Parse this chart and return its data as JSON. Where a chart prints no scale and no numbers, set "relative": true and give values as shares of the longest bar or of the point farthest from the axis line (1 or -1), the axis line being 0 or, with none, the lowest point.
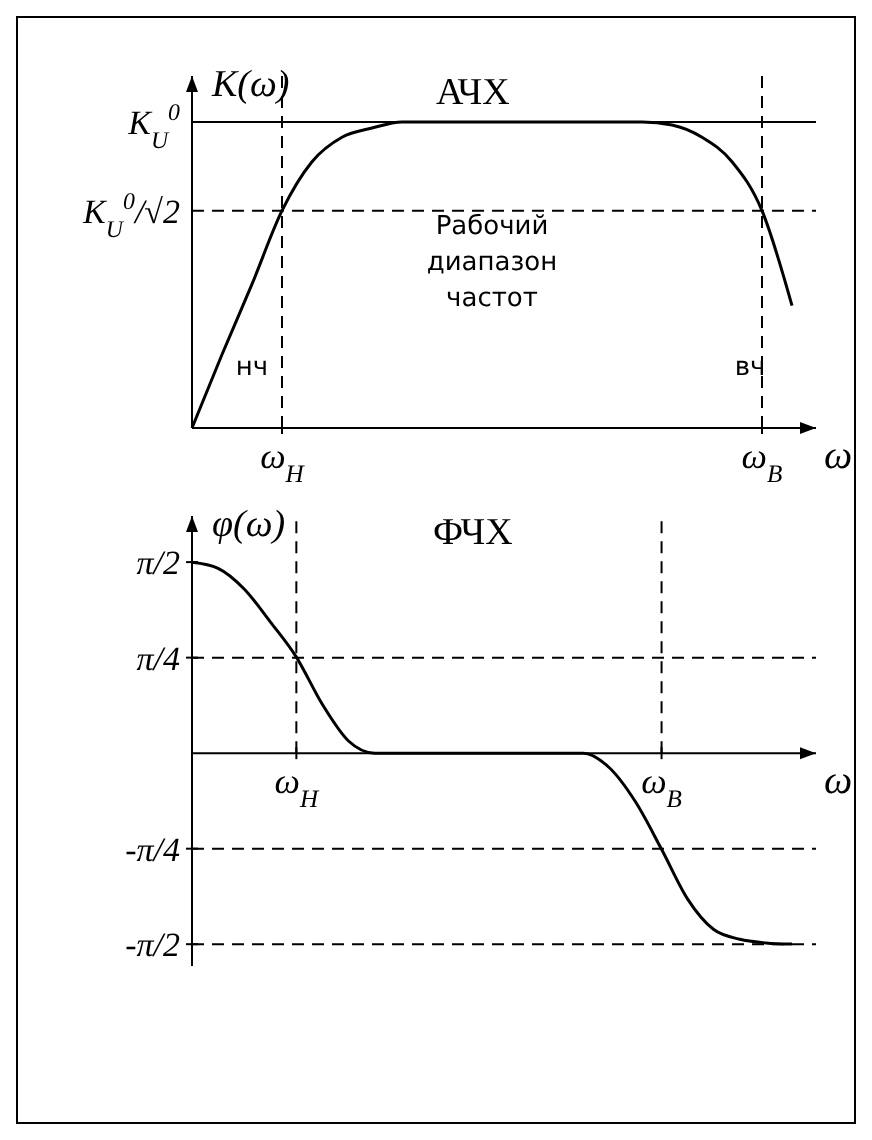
{
  "chart_data": [
    {
      "type": "line",
      "title": "АЧХ",
      "xlabel": "ω",
      "ylabel": "K(ω)",
      "relative": true,
      "categories": [
        null,
        null,
        null,
        "ω$_{H}$",
        null,
        null,
        null,
        null,
        null,
        null,
        null,
        null,
        null,
        null,
        null,
        null,
        null,
        null,
        null,
        "ω$_{B}$",
        null
      ],
      "series": [
        {
          "color": "#000000",
          "values": [
            0,
            0.24,
            0.47,
            0.71,
            0.87,
            0.95,
            0.98,
            1,
            1,
            1,
            1,
            1,
            1,
            1,
            1,
            1,
            0.99,
            0.95,
            0.87,
            0.71,
            0.4
          ]
        }
      ],
      "ref_lines": [
        {
          "axis": "y",
          "value": 1,
          "label": "K$_{U}$$^{0}$",
          "line_style": "solid"
        },
        {
          "axis": "y",
          "value": 0.71,
          "label": "K$_{U}$$^{0}$/√2",
          "line_style": "dashed"
        },
        {
          "axis": "x",
          "value": "ω$_{H}$",
          "line_style": "dashed"
        },
        {
          "axis": "x",
          "value": "ω$_{B}$",
          "line_style": "dashed"
        }
      ],
      "annotations": [
        "нч",
        "вч",
        "Рабочий диапазон частот"
      ],
      "grid": false,
      "line_style": "solid",
      "marker": "none"
    },
    {
      "type": "line",
      "title": "ФЧХ",
      "xlabel": "ω",
      "ylabel": "φ(ω)",
      "ylim": [
        -1.75,
        1.95
      ],
      "categories": [
        null,
        null,
        null,
        null,
        "ω$_{H}$",
        null,
        null,
        null,
        null,
        null,
        null,
        null,
        null,
        null,
        null,
        null,
        null,
        null,
        "ω$_{B}$",
        null,
        null,
        null,
        null,
        null
      ],
      "yticks": [
        {
          "value": 1.5708,
          "label": "π/2"
        },
        {
          "value": 0.7854,
          "label": "π/4"
        },
        {
          "value": -0.7854,
          "label": "-π/4"
        },
        {
          "value": -1.5708,
          "label": "-π/2"
        }
      ],
      "series": [
        {
          "color": "#000000",
          "values": [
            1.57,
            1.52,
            1.35,
            1.08,
            0.79,
            0.4,
            0.1,
            0,
            0,
            0,
            0,
            0,
            0,
            0,
            0,
            0,
            -0.12,
            -0.4,
            -0.79,
            -1.2,
            -1.45,
            -1.53,
            -1.56,
            -1.57
          ]
        }
      ],
      "ref_lines": [
        {
          "axis": "y",
          "value": 0.7854,
          "line_style": "dashed"
        },
        {
          "axis": "x",
          "value": "ω$_{H}$",
          "line_style": "dashed"
        },
        {
          "axis": "y",
          "value": -0.7854,
          "line_style": "dashed"
        },
        {
          "axis": "y",
          "value": -1.5708,
          "line_style": "dashed"
        },
        {
          "axis": "x",
          "value": "ω$_{B}$",
          "line_style": "dashed"
        }
      ],
      "grid": false,
      "line_style": "solid",
      "marker": "none"
    }
  ]
}
